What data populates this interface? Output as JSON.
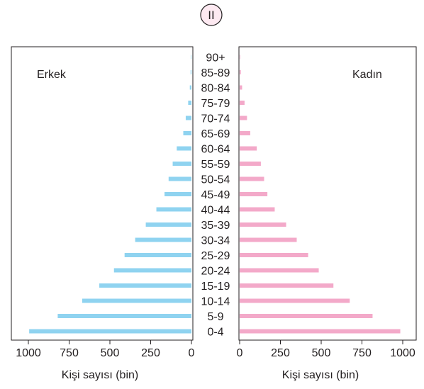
{
  "chart_data": {
    "type": "bar",
    "label": "II",
    "orientation": "horizontal-pyramid",
    "categories": [
      "0-4",
      "5-9",
      "10-14",
      "15-19",
      "20-24",
      "25-29",
      "30-34",
      "35-39",
      "40-44",
      "45-49",
      "50-54",
      "55-59",
      "60-64",
      "65-69",
      "70-74",
      "75-79",
      "80-84",
      "85-89",
      "90+"
    ],
    "series": [
      {
        "name": "Erkek",
        "color": "#8fd3f0",
        "side": "left",
        "values": [
          995,
          820,
          670,
          565,
          475,
          410,
          345,
          280,
          215,
          165,
          140,
          115,
          90,
          50,
          35,
          20,
          10,
          5,
          3
        ]
      },
      {
        "name": "Kadın",
        "color": "#f3a9c9",
        "side": "right",
        "values": [
          985,
          815,
          675,
          575,
          485,
          420,
          350,
          285,
          215,
          170,
          150,
          130,
          105,
          65,
          45,
          30,
          15,
          7,
          3
        ]
      }
    ],
    "left_axis": {
      "ticks": [
        1000,
        750,
        500,
        250,
        0
      ],
      "xlim": [
        1050,
        0
      ],
      "xlabel": "Kişi sayısı (bin)"
    },
    "right_axis": {
      "ticks": [
        0,
        250,
        500,
        750,
        1000
      ],
      "xlim": [
        0,
        1050
      ],
      "xlabel": "Kişi sayısı (bin)"
    }
  }
}
